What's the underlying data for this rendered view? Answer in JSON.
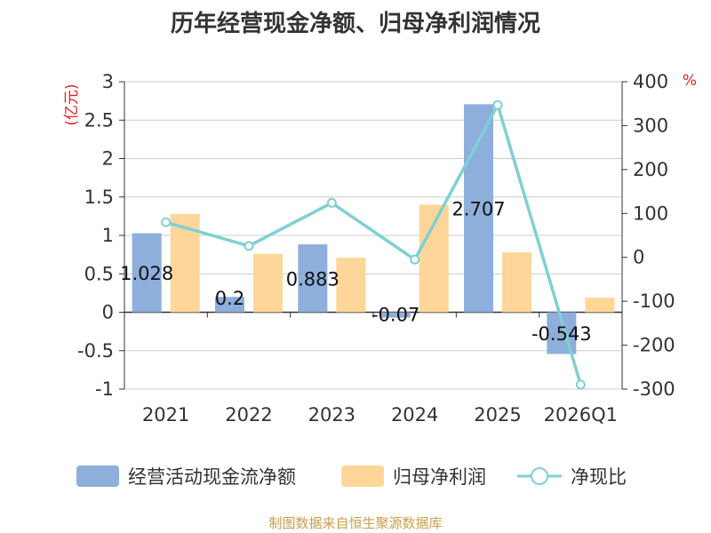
{
  "chart_data": {
    "type": "bar",
    "title": "历年经营现金净额、归母净利润情况",
    "categories": [
      "2021",
      "2022",
      "2023",
      "2024",
      "2025",
      "2026Q1"
    ],
    "series": [
      {
        "name": "经营活动现金流净额",
        "type": "bar",
        "axis": "left",
        "color": "#8eaedb",
        "values": [
          1.028,
          0.2,
          0.883,
          -0.07,
          2.707,
          -0.543
        ],
        "labels": [
          "1.028",
          "0.2",
          "0.883",
          "-0.07",
          "2.707",
          "-0.543"
        ]
      },
      {
        "name": "归母净利润",
        "type": "bar",
        "axis": "left",
        "color": "#fed699",
        "values": [
          1.28,
          0.76,
          0.71,
          1.4,
          0.78,
          0.19
        ]
      },
      {
        "name": "净现比",
        "type": "line",
        "axis": "right",
        "color": "#7fd0d3",
        "values": [
          80,
          26,
          124,
          -5,
          347,
          -290
        ]
      }
    ],
    "y_left": {
      "unit": "(亿元)",
      "min": -1,
      "max": 3,
      "ticks": [
        -1,
        -0.5,
        0,
        0.5,
        1,
        1.5,
        2,
        2.5,
        3
      ],
      "tick_labels": [
        "-1",
        "-0.5",
        "0",
        "0.5",
        "1",
        "1.5",
        "2",
        "2.5",
        "3"
      ]
    },
    "y_right": {
      "unit": "%",
      "min": -300,
      "max": 400,
      "ticks": [
        -300,
        -200,
        -100,
        0,
        100,
        200,
        300,
        400
      ],
      "tick_labels": [
        "-300",
        "-200",
        "-100",
        "0",
        "100",
        "200",
        "300",
        "400"
      ]
    },
    "grid": true,
    "legend_position": "bottom",
    "source": "制图数据来自恒生聚源数据库"
  }
}
